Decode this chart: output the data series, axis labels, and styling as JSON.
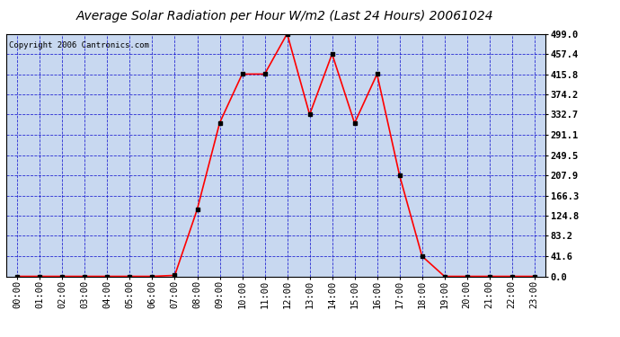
{
  "title": "Average Solar Radiation per Hour W/m2 (Last 24 Hours) 20061024",
  "copyright": "Copyright 2006 Cantronics.com",
  "hours": [
    "00:00",
    "01:00",
    "02:00",
    "03:00",
    "04:00",
    "05:00",
    "06:00",
    "07:00",
    "08:00",
    "09:00",
    "10:00",
    "11:00",
    "12:00",
    "13:00",
    "14:00",
    "15:00",
    "16:00",
    "17:00",
    "18:00",
    "19:00",
    "20:00",
    "21:00",
    "22:00",
    "23:00"
  ],
  "values": [
    0.0,
    0.0,
    0.0,
    0.0,
    0.0,
    0.0,
    0.0,
    2.0,
    138.0,
    316.0,
    416.0,
    416.0,
    499.0,
    332.7,
    457.4,
    315.0,
    416.0,
    207.9,
    41.6,
    0.0,
    0.0,
    0.0,
    0.0,
    0.0
  ],
  "yticks": [
    0.0,
    41.6,
    83.2,
    124.8,
    166.3,
    207.9,
    249.5,
    291.1,
    332.7,
    374.2,
    415.8,
    457.4,
    499.0
  ],
  "ymax": 499.0,
  "line_color": "#FF0000",
  "marker_color": "#000000",
  "bg_color": "#FFFFFF",
  "plot_bg_color": "#C8D8F0",
  "grid_color": "#0000CC",
  "border_color": "#000000",
  "title_fontsize": 10,
  "copyright_fontsize": 6.5,
  "tick_fontsize": 7.5
}
